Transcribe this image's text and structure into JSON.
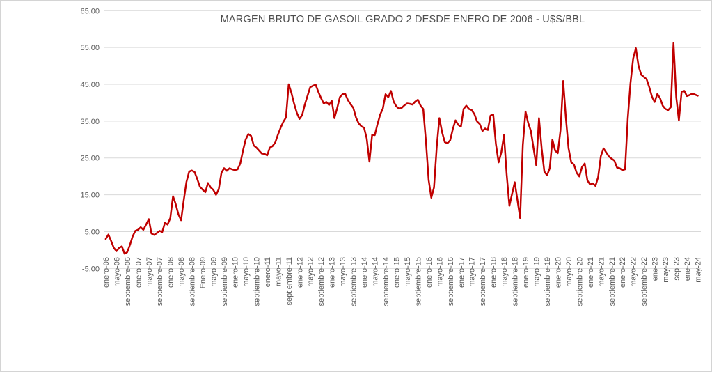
{
  "chart_title": "MARGEN BRUTO DE GASOIL GRADO 2 DESDE ENERO DE 2006 - U$S/BBL",
  "colors": {
    "line": "#C00000",
    "gridline": "#D9D9D9",
    "axis_text": "#595959",
    "title_text": "#4D4D4D",
    "frame_border": "#D4D4D4",
    "background": "#FFFFFF"
  },
  "chart_data": {
    "type": "line",
    "title": "MARGEN BRUTO DE GASOIL GRADO 2 DESDE ENERO DE 2006 - U$S/BBL",
    "xlabel": "",
    "ylabel": "",
    "ylim": [
      -5,
      65
    ],
    "grid": "horizontal",
    "legend_position": "none",
    "y_tick_labels": [
      "65.00",
      "55.00",
      "45.00",
      "35.00",
      "25.00",
      "15.00",
      "5.00",
      "-5.00"
    ],
    "y_tick_values": [
      65,
      55,
      45,
      35,
      25,
      15,
      5,
      -5
    ],
    "x_tick_every_n_months": 4,
    "x_tick_labels": [
      "enero-06",
      "mayo-06",
      "septiembre-06",
      "enero-07",
      "mayo-07",
      "septiembre-07",
      "enero-08",
      "mayo-08",
      "septiembre-08",
      "Enero-09",
      "mayo-09",
      "septiembre-09",
      "enero-10",
      "mayo-10",
      "septiembre-10",
      "enero-11",
      "mayo-11",
      "septiembre-11",
      "enero-12",
      "mayo-12",
      "septiembre-12",
      "enero-13",
      "mayo-13",
      "septiembre-13",
      "enero-14",
      "mayo-14",
      "septiembre-14",
      "enero-15",
      "mayo-15",
      "septiembre-15",
      "enero-16",
      "mayo-16",
      "septiembre-16",
      "enero-17",
      "mayo-17",
      "septiembre-17",
      "enero-18",
      "mayo-18",
      "septiembre-18",
      "enero-19",
      "mayo-19",
      "septiembre-19",
      "enero-20",
      "mayo-20",
      "septiembre-20",
      "enero-21",
      "mayo-21",
      "septiembre-21",
      "enero-22",
      "mayo-22",
      "septiembre-22",
      "ene-23",
      "may-23",
      "sep-23",
      "ene-24",
      "may-24"
    ],
    "series": [
      {
        "name": "Margen bruto gasoil grado 2 (U$S/BBL)",
        "color": "#C00000",
        "first_month": "enero-06",
        "last_month": "may-24",
        "values": [
          3.0,
          4.2,
          2.5,
          0.6,
          -0.3,
          0.6,
          1.0,
          -1.0,
          -0.6,
          1.4,
          3.7,
          5.2,
          5.5,
          6.2,
          5.5,
          6.9,
          8.4,
          4.5,
          4.1,
          4.6,
          5.2,
          4.9,
          7.4,
          6.9,
          8.7,
          14.6,
          12.5,
          9.7,
          8.1,
          13.5,
          18.5,
          21.3,
          21.6,
          21.2,
          19.3,
          17.2,
          16.4,
          15.7,
          18.2,
          17.0,
          16.3,
          15.0,
          16.5,
          21.0,
          22.2,
          21.5,
          22.2,
          21.9,
          21.7,
          21.9,
          23.5,
          27.0,
          30.0,
          31.5,
          31.0,
          28.4,
          27.8,
          27.0,
          26.2,
          26.1,
          25.7,
          27.8,
          28.2,
          29.2,
          31.3,
          33.2,
          34.8,
          36.0,
          45.0,
          42.7,
          39.8,
          37.3,
          35.6,
          36.6,
          39.5,
          41.9,
          44.2,
          44.6,
          44.9,
          43.0,
          41.3,
          39.8,
          40.2,
          39.4,
          40.5,
          35.8,
          38.5,
          41.5,
          42.3,
          42.4,
          40.7,
          39.6,
          38.6,
          36.0,
          34.4,
          33.6,
          33.2,
          30.3,
          24.0,
          31.3,
          31.2,
          34.2,
          36.8,
          38.4,
          42.3,
          41.5,
          43.2,
          40.3,
          39.0,
          38.4,
          38.6,
          39.3,
          39.8,
          39.7,
          39.5,
          40.3,
          40.8,
          39.2,
          38.3,
          29.5,
          19.0,
          14.2,
          17.0,
          28.0,
          35.8,
          32.0,
          29.3,
          29.0,
          29.8,
          32.9,
          35.2,
          34.0,
          33.5,
          38.3,
          39.2,
          38.3,
          38.0,
          36.9,
          34.9,
          34.2,
          32.3,
          33.0,
          32.6,
          36.5,
          36.8,
          28.8,
          23.8,
          26.5,
          31.2,
          20.5,
          12.0,
          15.2,
          18.4,
          13.5,
          8.7,
          28.5,
          37.6,
          34.5,
          32.3,
          27.5,
          23.0,
          35.8,
          27.5,
          21.3,
          20.3,
          22.2,
          30.0,
          27.0,
          26.3,
          32.5,
          45.9,
          36.0,
          27.6,
          23.8,
          23.2,
          21.0,
          20.0,
          22.5,
          23.5,
          18.9,
          17.8,
          18.1,
          17.4,
          19.8,
          25.5,
          27.6,
          26.5,
          25.4,
          24.8,
          24.3,
          22.4,
          22.2,
          21.7,
          21.9,
          35.8,
          45.2,
          52.0,
          54.8,
          50.0,
          47.6,
          47.0,
          46.4,
          44.2,
          41.6,
          40.2,
          42.4,
          41.2,
          39.2,
          38.3,
          38.0,
          38.8,
          56.2,
          41.5,
          35.2,
          43.0,
          43.2,
          41.8,
          42.1,
          42.5,
          42.2,
          41.9
        ]
      }
    ]
  }
}
